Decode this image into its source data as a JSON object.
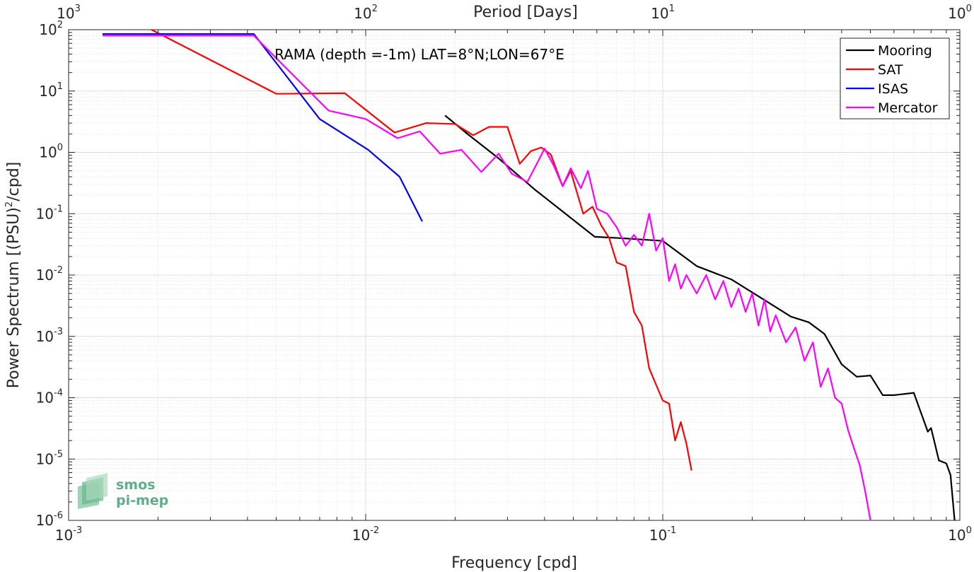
{
  "chart_data": {
    "type": "line",
    "annotation": "RAMA (depth =-1m) LAT=8°N;LON=67°E",
    "xlabel": "Frequency [cpd]",
    "ylabel_prefix": "Power Spectrum [(PSU)",
    "ylabel_sup": "2",
    "ylabel_suffix": "/cpd]",
    "top_xlabel": "Period [Days]",
    "xscale": "log",
    "yscale": "log",
    "xlim": [
      0.001,
      1
    ],
    "ylim": [
      1e-06,
      100
    ],
    "grid": true,
    "legend_position": "top-right",
    "x_ticks": [
      {
        "value": 0.001,
        "base": "10",
        "exp": "-3"
      },
      {
        "value": 0.01,
        "base": "10",
        "exp": "-2"
      },
      {
        "value": 0.1,
        "base": "10",
        "exp": "-1"
      },
      {
        "value": 1,
        "base": "10",
        "exp": "0"
      }
    ],
    "y_ticks": [
      {
        "value": 100,
        "base": "10",
        "exp": "2"
      },
      {
        "value": 10,
        "base": "10",
        "exp": "1"
      },
      {
        "value": 1,
        "base": "10",
        "exp": "0"
      },
      {
        "value": 0.1,
        "base": "10",
        "exp": "-1"
      },
      {
        "value": 0.01,
        "base": "10",
        "exp": "-2"
      },
      {
        "value": 0.001,
        "base": "10",
        "exp": "-3"
      },
      {
        "value": 0.0001,
        "base": "10",
        "exp": "-4"
      },
      {
        "value": 1e-05,
        "base": "10",
        "exp": "-5"
      },
      {
        "value": 1e-06,
        "base": "10",
        "exp": "-6"
      }
    ],
    "top_ticks": [
      {
        "period": 1000,
        "base": "10",
        "exp": "3"
      },
      {
        "period": 100,
        "base": "10",
        "exp": "2"
      },
      {
        "period": 10,
        "base": "10",
        "exp": "1"
      },
      {
        "period": 1,
        "base": "10",
        "exp": "0"
      }
    ],
    "series": [
      {
        "name": "Mooring",
        "color": "#000000",
        "x": [
          0.0185,
          0.022,
          0.028,
          0.037,
          0.059,
          0.072,
          0.1,
          0.13,
          0.17,
          0.21,
          0.27,
          0.31,
          0.35,
          0.4,
          0.45,
          0.5,
          0.55,
          0.6,
          0.7,
          0.78,
          0.8,
          0.85,
          0.9,
          0.93,
          0.96
        ],
        "y": [
          4,
          2,
          0.8,
          0.25,
          0.042,
          0.04,
          0.036,
          0.014,
          0.0085,
          0.0045,
          0.0021,
          0.0017,
          0.0011,
          0.00035,
          0.00022,
          0.00023,
          0.00011,
          0.00011,
          0.00012,
          2.8e-05,
          3.2e-05,
          9.5e-06,
          8.5e-06,
          5.5e-06,
          1e-06
        ]
      },
      {
        "name": "SAT",
        "color": "#ff0000",
        "x": [
          0.0019,
          0.005,
          0.0085,
          0.0125,
          0.016,
          0.02,
          0.023,
          0.026,
          0.03,
          0.033,
          0.036,
          0.039,
          0.042,
          0.046,
          0.049,
          0.05,
          0.054,
          0.058,
          0.062,
          0.066,
          0.07,
          0.075,
          0.08,
          0.085,
          0.09,
          0.1,
          0.105,
          0.11,
          0.115,
          0.12,
          0.125
        ],
        "y": [
          100,
          9,
          9.2,
          2.1,
          3,
          2.9,
          1.9,
          2.6,
          2.6,
          0.65,
          1.05,
          1.2,
          0.92,
          0.28,
          0.5,
          0.35,
          0.1,
          0.13,
          0.065,
          0.04,
          0.016,
          0.014,
          0.0025,
          0.0015,
          0.0003,
          9e-05,
          8e-05,
          2e-05,
          4e-05,
          1.8e-05,
          6.5e-06
        ]
      },
      {
        "name": "ISAS",
        "color": "#0000ff",
        "x": [
          0.0013,
          0.0042,
          0.007,
          0.0102,
          0.013,
          0.0155
        ],
        "y": [
          85,
          85,
          3.5,
          1.1,
          0.4,
          0.075
        ]
      },
      {
        "name": "Mercator",
        "color": "#ff00ff",
        "x": [
          0.0013,
          0.0042,
          0.0075,
          0.01,
          0.0128,
          0.0152,
          0.0178,
          0.021,
          0.0245,
          0.028,
          0.031,
          0.035,
          0.037,
          0.04,
          0.043,
          0.046,
          0.049,
          0.053,
          0.056,
          0.06,
          0.065,
          0.07,
          0.075,
          0.08,
          0.085,
          0.09,
          0.095,
          0.1,
          0.105,
          0.11,
          0.115,
          0.12,
          0.13,
          0.14,
          0.15,
          0.16,
          0.17,
          0.18,
          0.19,
          0.2,
          0.21,
          0.22,
          0.23,
          0.24,
          0.26,
          0.28,
          0.3,
          0.32,
          0.34,
          0.36,
          0.38,
          0.4,
          0.42,
          0.44,
          0.46,
          0.48,
          0.5
        ],
        "y": [
          80,
          80,
          4.8,
          3.5,
          1.7,
          2.2,
          0.95,
          1.1,
          0.48,
          0.95,
          0.45,
          0.33,
          0.55,
          1.15,
          0.6,
          0.28,
          0.55,
          0.26,
          0.5,
          0.12,
          0.1,
          0.06,
          0.03,
          0.045,
          0.03,
          0.1,
          0.025,
          0.04,
          0.008,
          0.015,
          0.006,
          0.01,
          0.005,
          0.01,
          0.004,
          0.008,
          0.003,
          0.006,
          0.0025,
          0.005,
          0.0015,
          0.004,
          0.0012,
          0.0022,
          0.0008,
          0.0014,
          0.0004,
          0.0008,
          0.00015,
          0.0003,
          0.0001,
          8e-05,
          3e-05,
          1.5e-05,
          8e-06,
          3e-06,
          1e-06
        ]
      }
    ]
  },
  "logo": {
    "line1": "smos",
    "line2": "pi-mep"
  }
}
